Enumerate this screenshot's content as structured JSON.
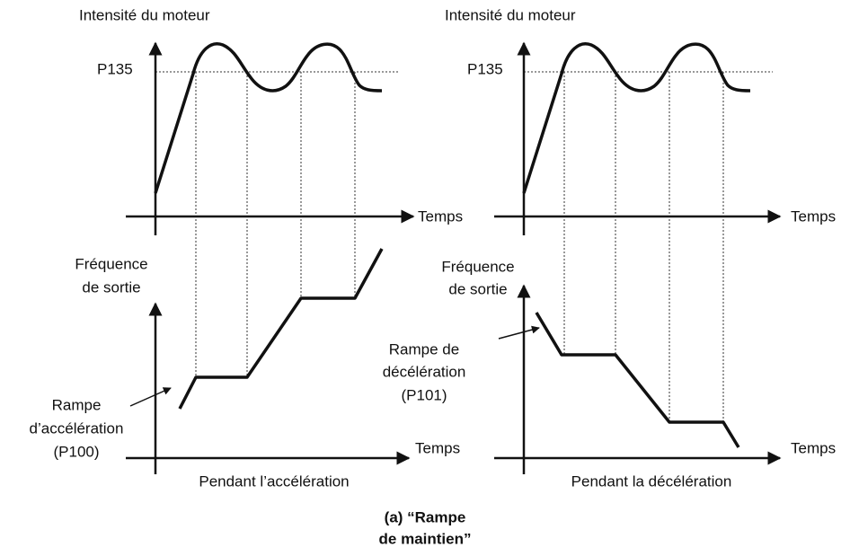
{
  "panels": [
    {
      "top_title": "Intensité du moteur",
      "level": "P135",
      "x_axis": "Temps",
      "bottom_title": [
        "Fréquence",
        "de sortie"
      ],
      "ramp": [
        "Rampe",
        "d’accélération",
        "(P100)"
      ],
      "bottom_x_axis": "Temps",
      "caption": "Pendant l’accélération"
    },
    {
      "top_title": "Intensité du moteur",
      "level": "P135",
      "x_axis": "Temps",
      "bottom_title": [
        "Fréquence",
        "de sortie"
      ],
      "ramp": [
        "Rampe de",
        "décélération",
        "(P101)"
      ],
      "bottom_x_axis": "Temps",
      "caption": "Pendant la décélération"
    }
  ],
  "caption": [
    "(a) “Rampe",
    "de maintien”"
  ]
}
